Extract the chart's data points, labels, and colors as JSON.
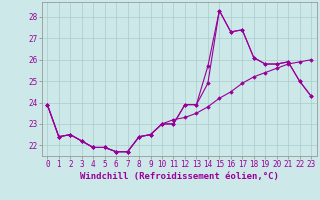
{
  "xlabel": "Windchill (Refroidissement éolien,°C)",
  "bg_color": "#cce8e8",
  "line_color": "#990099",
  "grid_color": "#aacccc",
  "hours": [
    0,
    1,
    2,
    3,
    4,
    5,
    6,
    7,
    8,
    9,
    10,
    11,
    12,
    13,
    14,
    15,
    16,
    17,
    18,
    19,
    20,
    21,
    22,
    23
  ],
  "series1": [
    23.9,
    22.4,
    22.5,
    22.2,
    21.9,
    21.9,
    21.7,
    21.7,
    22.4,
    22.5,
    23.0,
    23.0,
    23.9,
    23.9,
    25.7,
    28.3,
    27.3,
    27.4,
    26.1,
    25.8,
    25.8,
    25.9,
    25.0,
    24.3
  ],
  "series2": [
    23.9,
    22.4,
    22.5,
    22.2,
    21.9,
    21.9,
    21.7,
    21.7,
    22.4,
    22.5,
    23.0,
    23.0,
    23.9,
    23.9,
    24.9,
    28.3,
    27.3,
    27.4,
    26.1,
    25.8,
    25.8,
    25.9,
    25.0,
    24.3
  ],
  "series3": [
    23.9,
    22.4,
    22.5,
    22.2,
    21.9,
    21.9,
    21.7,
    21.7,
    22.4,
    22.5,
    23.0,
    23.2,
    23.3,
    23.5,
    23.8,
    24.2,
    24.5,
    24.9,
    25.2,
    25.4,
    25.6,
    25.8,
    25.9,
    26.0
  ],
  "ylim": [
    21.5,
    28.7
  ],
  "yticks": [
    22,
    23,
    24,
    25,
    26,
    27,
    28
  ],
  "marker": "D",
  "marker_size": 1.8,
  "line_width": 0.8,
  "tick_font_size": 5.5,
  "xlabel_font_size": 6.5
}
